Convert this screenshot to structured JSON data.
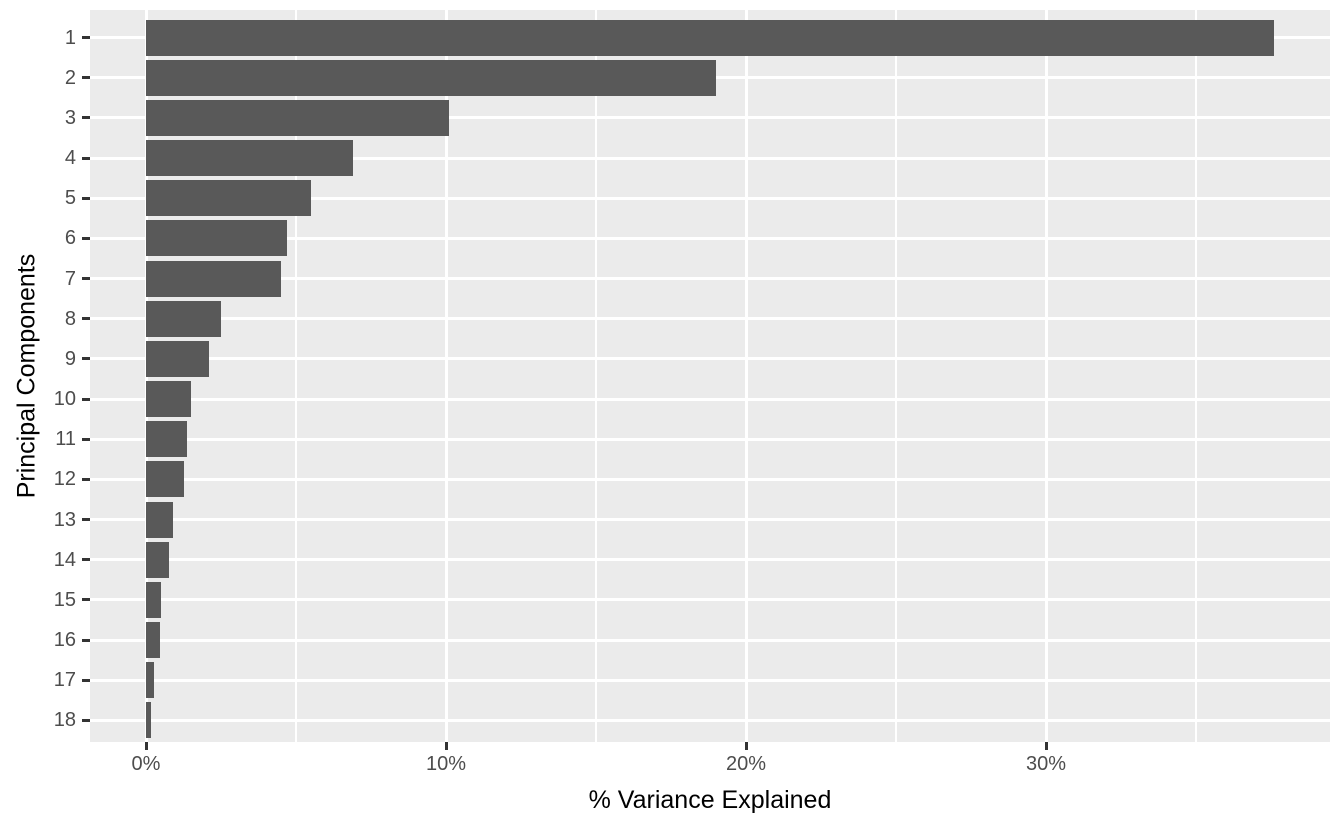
{
  "chart_data": {
    "type": "bar",
    "orientation": "horizontal",
    "title": "",
    "xlabel": "% Variance Explained",
    "ylabel": "Principal Components",
    "categories": [
      "1",
      "2",
      "3",
      "4",
      "5",
      "6",
      "7",
      "8",
      "9",
      "10",
      "11",
      "12",
      "13",
      "14",
      "15",
      "16",
      "17",
      "18"
    ],
    "values": [
      37.6,
      19.0,
      10.1,
      6.9,
      5.5,
      4.7,
      4.5,
      2.5,
      2.1,
      1.5,
      1.35,
      1.28,
      0.9,
      0.75,
      0.5,
      0.48,
      0.28,
      0.15
    ],
    "value_unit": "%",
    "x_ticks": [
      {
        "value": 0,
        "label": "0%"
      },
      {
        "value": 10,
        "label": "10%"
      },
      {
        "value": 20,
        "label": "20%"
      },
      {
        "value": 30,
        "label": "30%"
      }
    ],
    "x_minor_ticks": [
      5,
      15,
      25,
      35
    ],
    "xlim": [
      -1.9,
      39.5
    ],
    "grid": "on",
    "legend": "none",
    "style": {
      "bar_color": "#595959",
      "panel_bg": "#EBEBEB",
      "grid_color": "#FFFFFF",
      "tick_label_color": "#4D4D4D",
      "axis_title_color": "#000000",
      "tick_mark_color": "#333333",
      "outer_bg": "#FFFFFF"
    }
  }
}
